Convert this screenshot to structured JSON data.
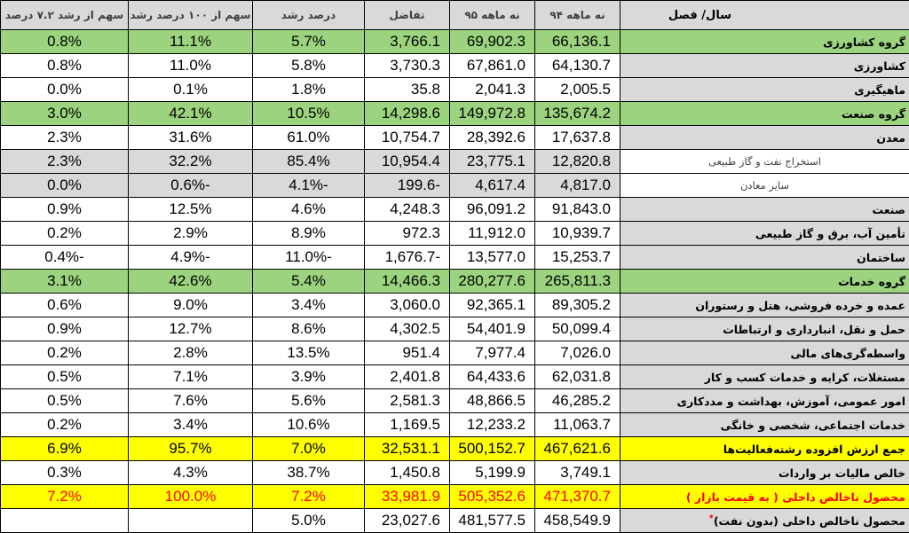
{
  "headers": {
    "label": "سال/ فصل",
    "m94": "نه ماهه ۹۴",
    "m95": "نه ماهه ۹۵",
    "diff": "تفاضل",
    "growth": "درصد رشد",
    "share100": "سهم از ۱۰۰ درصد رشد",
    "share72": "سهم از رشد ۷.۲ درصد"
  },
  "rows": [
    {
      "label": "گروه کشاورزی",
      "m94": "66,136.1",
      "m95": "69,902.3",
      "diff": "3,766.1",
      "growth": "5.7%",
      "share100": "11.1%",
      "share72": "0.8%"
    },
    {
      "label": "کشاورزی",
      "m94": "64,130.7",
      "m95": "67,861.0",
      "diff": "3,730.3",
      "growth": "5.8%",
      "share100": "11.0%",
      "share72": "0.8%"
    },
    {
      "label": "ماهیگیری",
      "m94": "2,005.5",
      "m95": "2,041.3",
      "diff": "35.8",
      "growth": "1.8%",
      "share100": "0.1%",
      "share72": "0.0%"
    },
    {
      "label": "گروه صنعت",
      "m94": "135,674.2",
      "m95": "149,972.8",
      "diff": "14,298.6",
      "growth": "10.5%",
      "share100": "42.1%",
      "share72": "3.0%"
    },
    {
      "label": "معدن",
      "m94": "17,637.8",
      "m95": "28,392.6",
      "diff": "10,754.7",
      "growth": "61.0%",
      "share100": "31.6%",
      "share72": "2.3%"
    },
    {
      "label": "استخراج نفت و گاز طبیعی",
      "m94": "12,820.8",
      "m95": "23,775.1",
      "diff": "10,954.4",
      "growth": "85.4%",
      "share100": "32.2%",
      "share72": "2.3%"
    },
    {
      "label": "سایر معادن",
      "m94": "4,817.0",
      "m95": "4,617.4",
      "diff": "-199.6",
      "growth": "-4.1%",
      "share100": "-0.6%",
      "share72": "0.0%"
    },
    {
      "label": "صنعت",
      "m94": "91,843.0",
      "m95": "96,091.2",
      "diff": "4,248.3",
      "growth": "4.6%",
      "share100": "12.5%",
      "share72": "0.9%"
    },
    {
      "label": "تأمین آب، برق و گاز طبیعی",
      "m94": "10,939.7",
      "m95": "11,912.0",
      "diff": "972.3",
      "growth": "8.9%",
      "share100": "2.9%",
      "share72": "0.2%"
    },
    {
      "label": "ساختمان",
      "m94": "15,253.7",
      "m95": "13,577.0",
      "diff": "-1,676.7",
      "growth": "-11.0%",
      "share100": "-4.9%",
      "share72": "-0.4%"
    },
    {
      "label": "گروه خدمات",
      "m94": "265,811.3",
      "m95": "280,277.6",
      "diff": "14,466.3",
      "growth": "5.4%",
      "share100": "42.6%",
      "share72": "3.1%"
    },
    {
      "label": "عمده و خرده فروشی، هتل و رستوران",
      "m94": "89,305.2",
      "m95": "92,365.1",
      "diff": "3,060.0",
      "growth": "3.4%",
      "share100": "9.0%",
      "share72": "0.6%"
    },
    {
      "label": "حمل و نقل، انبارداری و ارتباطات",
      "m94": "50,099.4",
      "m95": "54,401.9",
      "diff": "4,302.5",
      "growth": "8.6%",
      "share100": "12.7%",
      "share72": "0.9%"
    },
    {
      "label": "واسطه‌گری‌های مالی",
      "m94": "7,026.0",
      "m95": "7,977.4",
      "diff": "951.4",
      "growth": "13.5%",
      "share100": "2.8%",
      "share72": "0.2%"
    },
    {
      "label": "مستغلات، کرایه و خدمات کسب و کار",
      "m94": "62,031.8",
      "m95": "64,433.6",
      "diff": "2,401.8",
      "growth": "3.9%",
      "share100": "7.1%",
      "share72": "0.5%"
    },
    {
      "label": "امور عمومی، آموزش، بهداشت و مددکاری",
      "m94": "46,285.2",
      "m95": "48,866.5",
      "diff": "2,581.3",
      "growth": "5.6%",
      "share100": "7.6%",
      "share72": "0.5%"
    },
    {
      "label": "خدمات اجتماعی، شخصی و خانگی",
      "m94": "11,063.7",
      "m95": "12,233.2",
      "diff": "1,169.5",
      "growth": "10.6%",
      "share100": "3.4%",
      "share72": "0.2%"
    },
    {
      "label": "جمع ارزش افزوده رشته‌فعالیت‌ها",
      "m94": "467,621.6",
      "m95": "500,152.7",
      "diff": "32,531.1",
      "growth": "7.0%",
      "share100": "95.7%",
      "share72": "6.9%"
    },
    {
      "label": "خالص مالیات بر واردات",
      "m94": "3,749.1",
      "m95": "5,199.9",
      "diff": "1,450.8",
      "growth": "38.7%",
      "share100": "4.3%",
      "share72": "0.3%"
    },
    {
      "label": "محصول ناخالص داخلی ( به قیمت بازار )",
      "m94": "471,370.7",
      "m95": "505,352.6",
      "diff": "33,981.9",
      "growth": "7.2%",
      "share100": "100.0%",
      "share72": "7.2%"
    },
    {
      "label": "محصول ناخالص داخلی (بدون نفت)",
      "star": "*",
      "m94": "458,549.9",
      "m95": "481,577.5",
      "diff": "23,027.6",
      "growth": "5.0%",
      "share100": "",
      "share72": ""
    }
  ],
  "row_styles": [
    "group",
    "plain",
    "plain",
    "group",
    "plain",
    "sub",
    "sub",
    "plain",
    "plain",
    "plain",
    "group",
    "plain",
    "plain",
    "plain",
    "plain",
    "plain",
    "plain",
    "total",
    "plain",
    "gdp",
    "plain"
  ],
  "colors": {
    "header_bg": "#d9d9d9",
    "group_bg": "#9bd37e",
    "total_bg": "#ffff00",
    "gdp_text": "#ff0000",
    "sub_row_bg": "#d9d9d9"
  }
}
